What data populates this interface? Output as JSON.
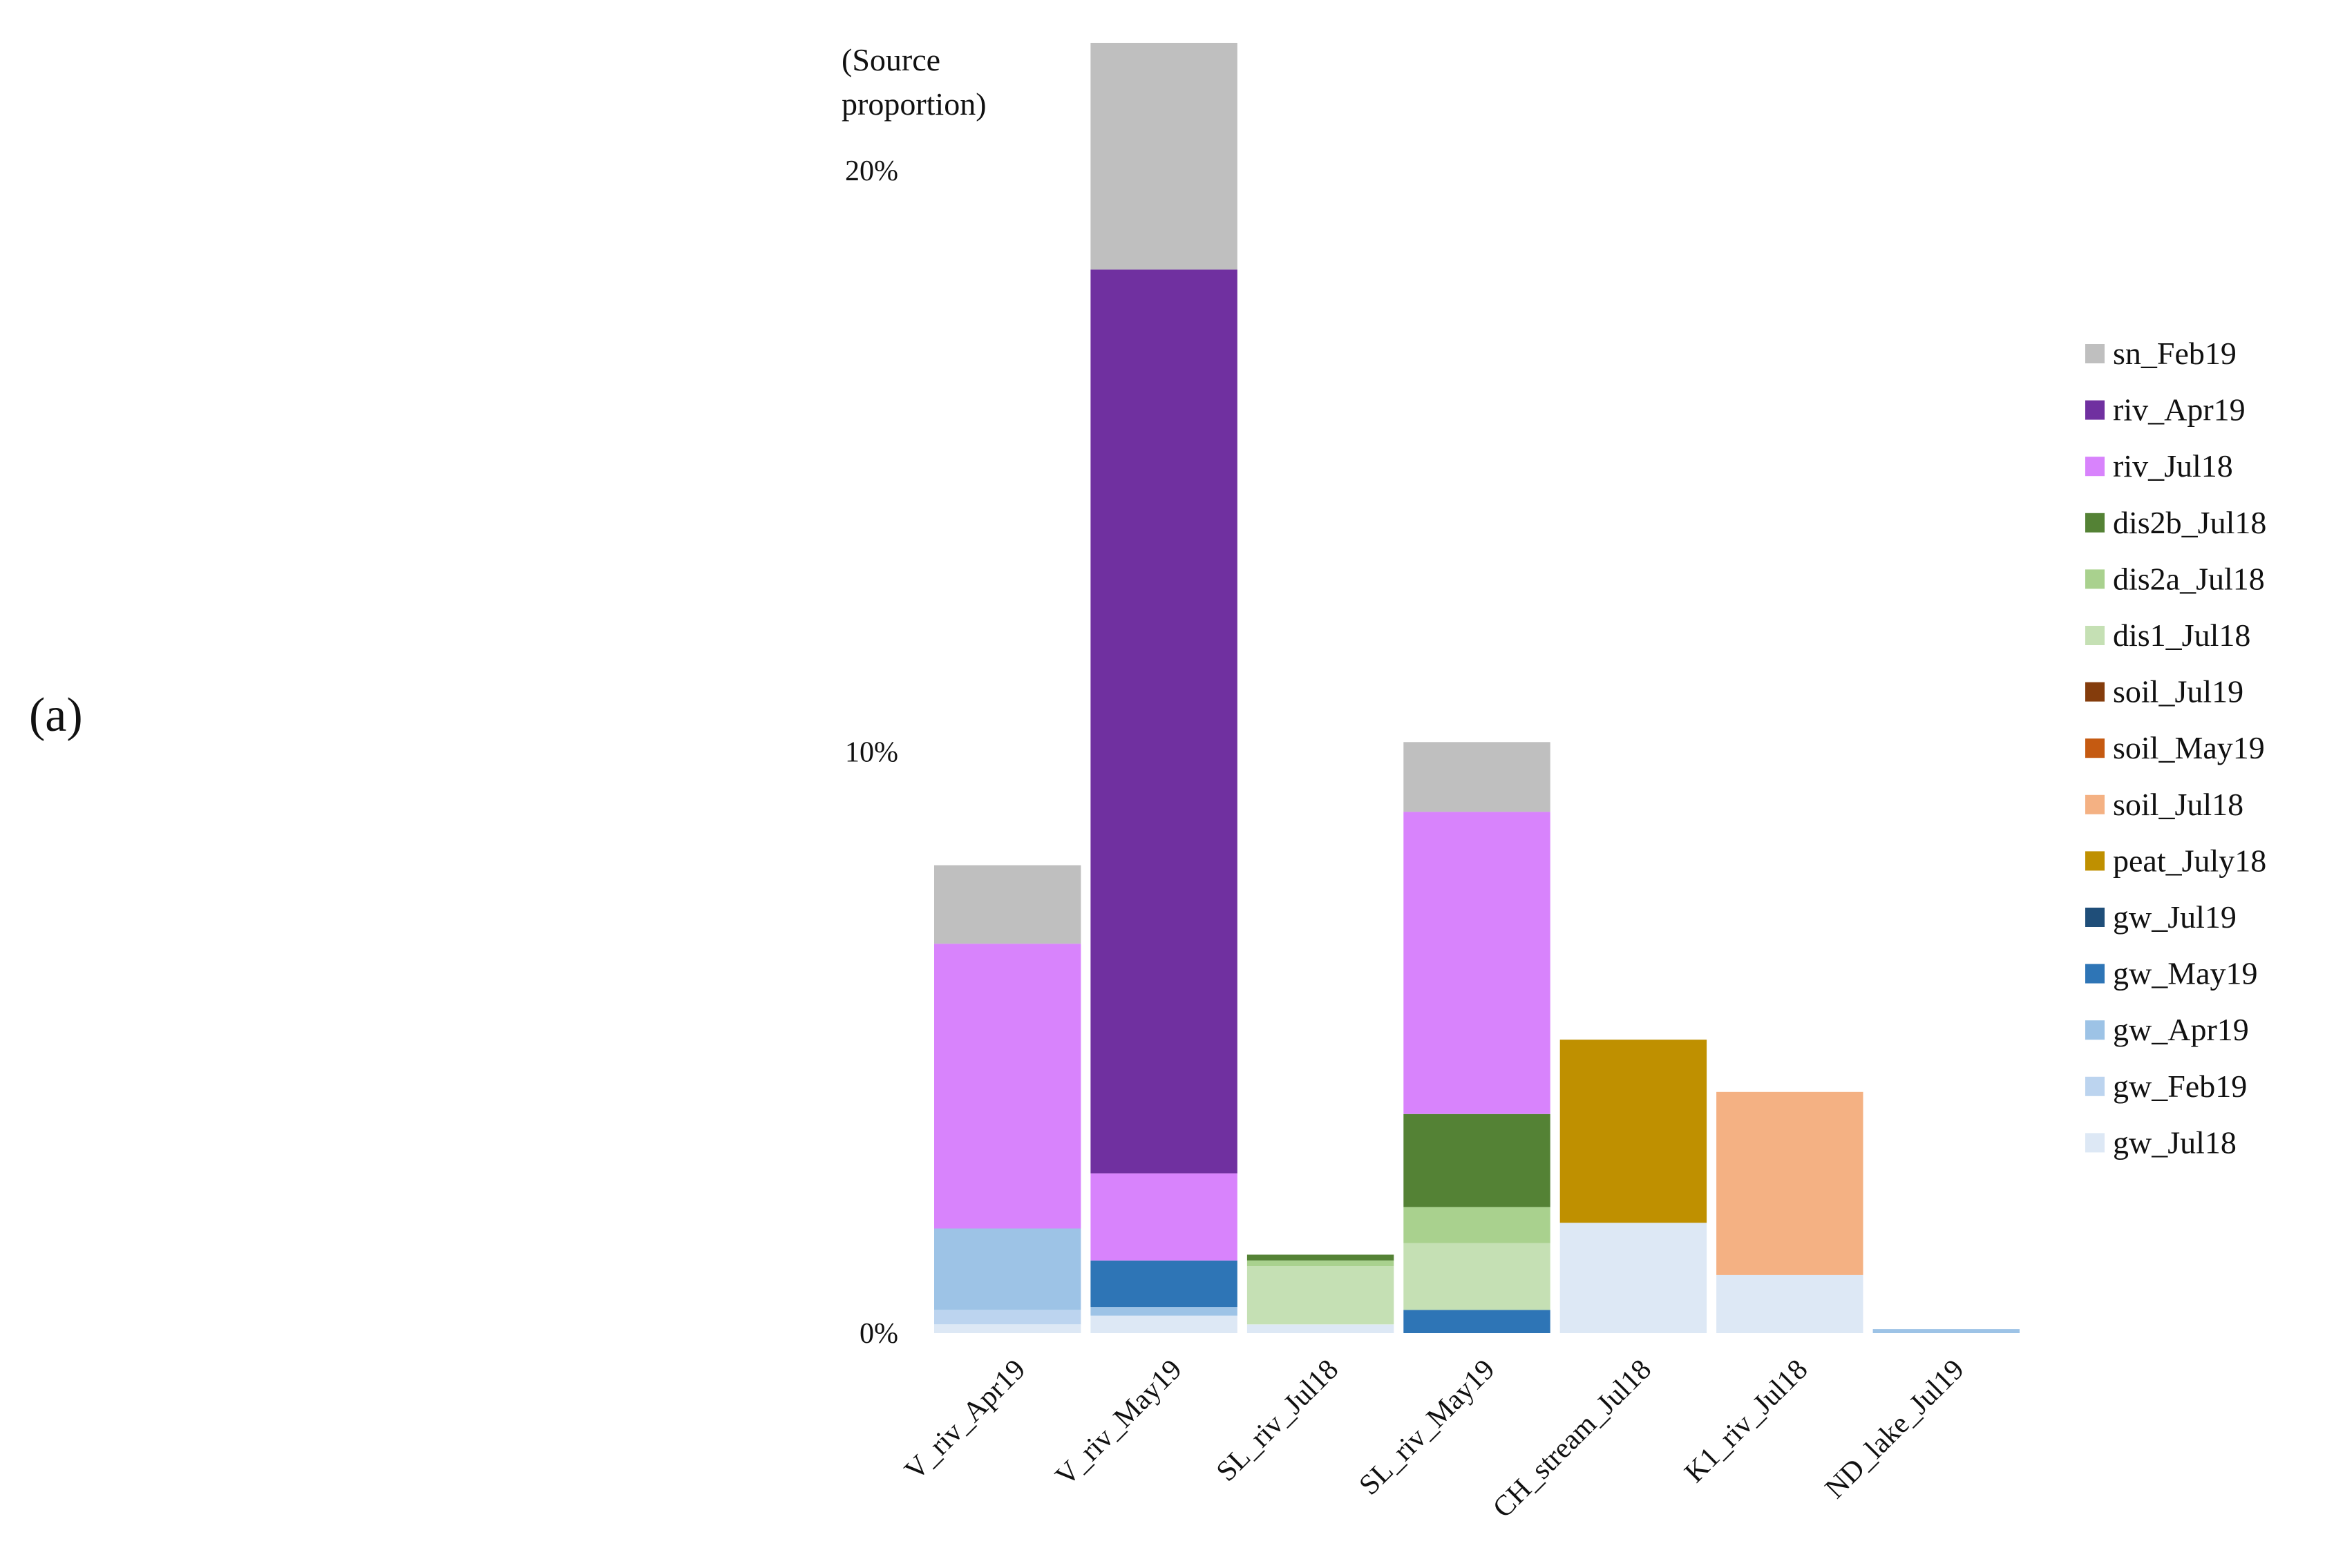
{
  "panel_label": "(a)",
  "chart_data": {
    "type": "bar",
    "stacked": true,
    "title": "",
    "xlabel": "",
    "ylabel": "(Source proportion)",
    "ylabel_lines": [
      "(Source",
      "proportion)"
    ],
    "ylim": [
      0,
      22.2
    ],
    "yticks": [
      0,
      10,
      20
    ],
    "ytick_labels": [
      "0%",
      "10%",
      "20%"
    ],
    "legend_placement": "right",
    "grid": false,
    "categories": [
      "V_riv_Apr19",
      "V_riv_May19",
      "SL_riv_Jul18",
      "SL_riv_May19",
      "CH_stream_Jul18",
      "K1_riv_Jul18",
      "ND_lake_Jul19"
    ],
    "series": [
      {
        "name": "gw_Jul18",
        "color": "#dde8f5",
        "values": [
          0.15,
          0.3,
          0.15,
          0.0,
          1.9,
          1.0,
          0.0
        ]
      },
      {
        "name": "gw_Feb19",
        "color": "#bcd4ef",
        "values": [
          0.25,
          0.0,
          0.0,
          0.0,
          0.0,
          0.0,
          0.0
        ]
      },
      {
        "name": "gw_Apr19",
        "color": "#9dc3e6",
        "values": [
          1.4,
          0.15,
          0.0,
          0.0,
          0.0,
          0.0,
          0.07
        ]
      },
      {
        "name": "gw_May19",
        "color": "#2e75b6",
        "values": [
          0.0,
          0.8,
          0.0,
          0.4,
          0.0,
          0.0,
          0.0
        ]
      },
      {
        "name": "gw_Jul19",
        "color": "#1f4e79",
        "values": [
          0.0,
          0.0,
          0.0,
          0.0,
          0.0,
          0.0,
          0.0
        ]
      },
      {
        "name": "peat_July18",
        "color": "#bf9000",
        "values": [
          0.0,
          0.0,
          0.0,
          0.0,
          3.15,
          0.0,
          0.0
        ]
      },
      {
        "name": "soil_Jul18",
        "color": "#f4b183",
        "values": [
          0.0,
          0.0,
          0.0,
          0.0,
          0.0,
          3.15,
          0.0
        ]
      },
      {
        "name": "soil_May19",
        "color": "#c55a11",
        "values": [
          0.0,
          0.0,
          0.0,
          0.0,
          0.0,
          0.0,
          0.0
        ]
      },
      {
        "name": "soil_Jul19",
        "color": "#843c0c",
        "values": [
          0.0,
          0.0,
          0.0,
          0.0,
          0.0,
          0.0,
          0.0
        ]
      },
      {
        "name": "dis1_Jul18",
        "color": "#c5e0b4",
        "values": [
          0.0,
          0.0,
          1.0,
          1.15,
          0.0,
          0.0,
          0.0
        ]
      },
      {
        "name": "dis2a_Jul18",
        "color": "#a9d18e",
        "values": [
          0.0,
          0.0,
          0.1,
          0.62,
          0.0,
          0.0,
          0.0
        ]
      },
      {
        "name": "dis2b_Jul18",
        "color": "#548235",
        "values": [
          0.0,
          0.0,
          0.1,
          1.6,
          0.0,
          0.0,
          0.0
        ]
      },
      {
        "name": "riv_Jul18",
        "color": "#d883fc",
        "values": [
          4.9,
          1.5,
          0.0,
          5.2,
          0.0,
          0.0,
          0.0
        ]
      },
      {
        "name": "riv_Apr19",
        "color": "#7030a0",
        "values": [
          0.0,
          15.55,
          0.0,
          0.0,
          0.0,
          0.0,
          0.0
        ]
      },
      {
        "name": "sn_Feb19",
        "color": "#bfbfbf",
        "values": [
          1.35,
          3.9,
          0.0,
          1.2,
          0.0,
          0.0,
          0.0
        ]
      }
    ],
    "legend_order": [
      "sn_Feb19",
      "riv_Apr19",
      "riv_Jul18",
      "dis2b_Jul18",
      "dis2a_Jul18",
      "dis1_Jul18",
      "soil_Jul19",
      "soil_May19",
      "soil_Jul18",
      "peat_July18",
      "gw_Jul19",
      "gw_May19",
      "gw_Apr19",
      "gw_Feb19",
      "gw_Jul18"
    ]
  }
}
